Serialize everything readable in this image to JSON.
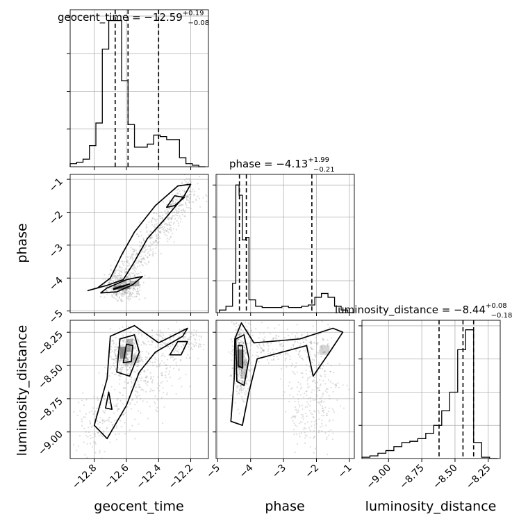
{
  "chart_data": {
    "type": "corner",
    "parameters": [
      {
        "name": "geocent_time",
        "median": -12.59,
        "plus": "+0.19",
        "minus": "−0.08",
        "range": [
          -12.95,
          -12.09
        ],
        "ticks": [
          -12.8,
          -12.6,
          -12.4,
          -12.2
        ],
        "tick_labels": [
          "−12.8",
          "−12.6",
          "−12.4",
          "−12.2"
        ]
      },
      {
        "name": "phase",
        "median": -4.13,
        "plus": "+1.99",
        "minus": "−0.21",
        "range": [
          -5.05,
          -0.85
        ],
        "ticks": [
          -5,
          -4,
          -3,
          -2,
          -1
        ],
        "tick_labels": [
          "−5",
          "−4",
          "−3",
          "−2",
          "−1"
        ]
      },
      {
        "name": "luminosity_distance",
        "median": -8.44,
        "plus": "+0.08",
        "minus": "−0.18",
        "range": [
          -9.2,
          -8.16
        ],
        "ticks": [
          -9.0,
          -8.75,
          -8.5,
          -8.25
        ],
        "tick_labels": [
          "−9.00",
          "−8.75",
          "−8.50",
          "−8.25"
        ]
      }
    ],
    "titles": [
      {
        "prefix": "geocent_time = −12.59",
        "sup": "+0.19",
        "sub": "−0.08"
      },
      {
        "prefix": "phase = −4.13",
        "sup": "+1.99",
        "sub": "−0.21"
      },
      {
        "prefix": "luminosity_distance = −8.44",
        "sup": "+0.08",
        "sub": "−0.18"
      }
    ],
    "histograms": [
      {
        "param": "geocent_time",
        "quantiles": [
          -12.67,
          -12.59,
          -12.4
        ],
        "edges": [
          -12.95,
          -12.91,
          -12.87,
          -12.83,
          -12.79,
          -12.75,
          -12.71,
          -12.67,
          -12.63,
          -12.59,
          -12.55,
          -12.51,
          -12.47,
          -12.43,
          -12.39,
          -12.35,
          -12.31,
          -12.27,
          -12.23,
          -12.19,
          -12.15,
          -12.11
        ],
        "counts": [
          0.02,
          0.03,
          0.05,
          0.14,
          0.29,
          0.78,
          0.97,
          0.97,
          0.57,
          0.28,
          0.13,
          0.13,
          0.15,
          0.21,
          0.2,
          0.18,
          0.18,
          0.06,
          0.02,
          0.01,
          0.0
        ]
      },
      {
        "param": "phase",
        "quantiles": [
          -4.34,
          -4.13,
          -2.14
        ],
        "edges": [
          -4.95,
          -4.75,
          -4.55,
          -4.45,
          -4.35,
          -4.25,
          -4.15,
          -4.05,
          -3.85,
          -3.65,
          -3.45,
          -3.25,
          -3.05,
          -2.85,
          -2.65,
          -2.45,
          -2.25,
          -2.05,
          -1.85,
          -1.65,
          -1.45,
          -1.25,
          -1.05,
          -0.85
        ],
        "counts": [
          0.02,
          0.05,
          0.23,
          1.0,
          0.92,
          0.57,
          0.59,
          0.1,
          0.05,
          0.04,
          0.04,
          0.04,
          0.05,
          0.04,
          0.04,
          0.05,
          0.06,
          0.12,
          0.15,
          0.12,
          0.05,
          0.02,
          0.0
        ]
      },
      {
        "param": "luminosity_distance",
        "quantiles": [
          -8.62,
          -8.44,
          -8.36
        ],
        "edges": [
          -9.2,
          -9.14,
          -9.08,
          -9.02,
          -8.96,
          -8.9,
          -8.84,
          -8.78,
          -8.72,
          -8.66,
          -8.6,
          -8.54,
          -8.48,
          -8.42,
          -8.36,
          -8.3,
          -8.24,
          -8.18
        ],
        "counts": [
          0.01,
          0.02,
          0.04,
          0.06,
          0.09,
          0.12,
          0.13,
          0.15,
          0.19,
          0.25,
          0.36,
          0.5,
          0.82,
          0.97,
          0.12,
          0.01,
          0.0
        ]
      }
    ],
    "pairs": [
      {
        "x": "geocent_time",
        "y": "phase"
      },
      {
        "x": "geocent_time",
        "y": "luminosity_distance"
      },
      {
        "x": "phase",
        "y": "luminosity_distance"
      }
    ]
  }
}
